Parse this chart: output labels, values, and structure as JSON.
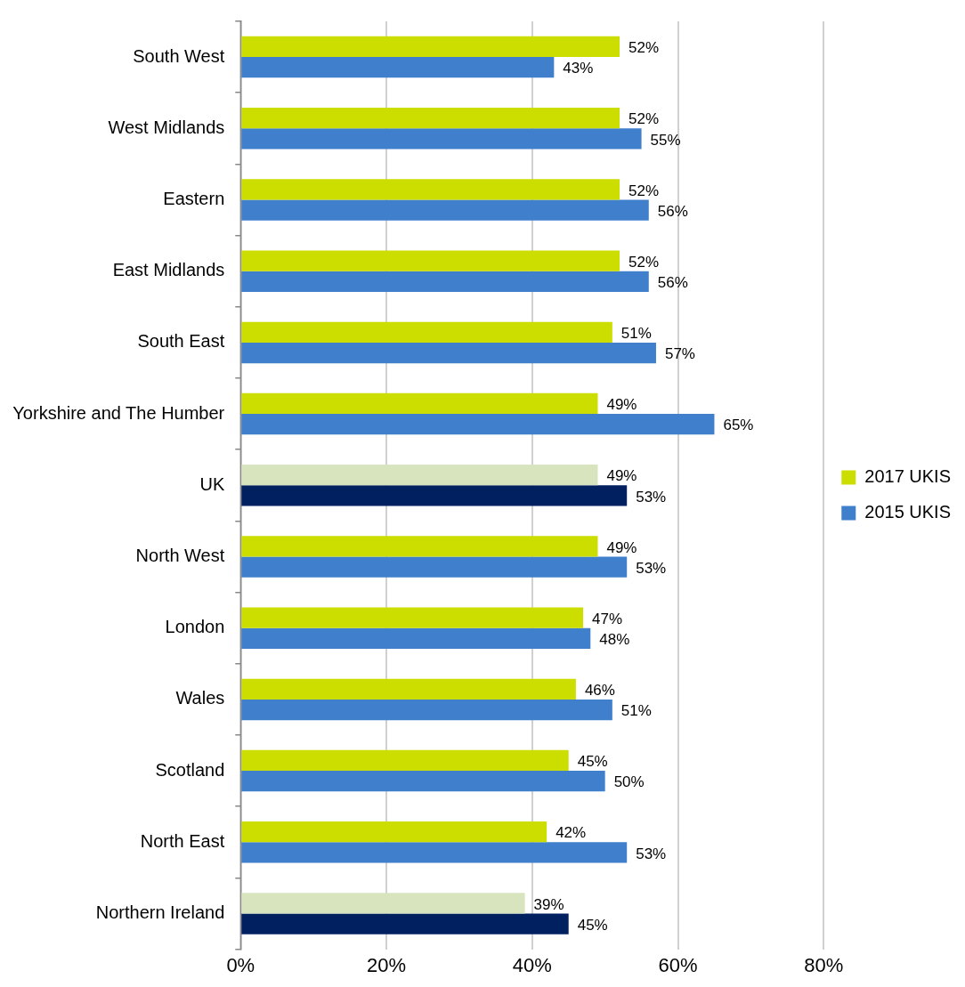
{
  "chart_data": {
    "type": "bar",
    "orientation": "horizontal",
    "categories": [
      "South West",
      "West Midlands",
      "Eastern",
      "East Midlands",
      "South East",
      "Yorkshire and The Humber",
      "UK",
      "North West",
      "London",
      "Wales",
      "Scotland",
      "North East",
      "Northern Ireland"
    ],
    "series": [
      {
        "name": "2017 UKIS",
        "color": "#ccdd00",
        "colors": [
          "#ccdd00",
          "#ccdd00",
          "#ccdd00",
          "#ccdd00",
          "#ccdd00",
          "#ccdd00",
          "#d7e4bd",
          "#ccdd00",
          "#ccdd00",
          "#ccdd00",
          "#ccdd00",
          "#ccdd00",
          "#d7e4bd"
        ],
        "values": [
          52,
          52,
          52,
          52,
          51,
          49,
          49,
          49,
          47,
          46,
          45,
          42,
          39
        ],
        "value_labels": [
          "52%",
          "52%",
          "52%",
          "52%",
          "51%",
          "49%",
          "49%",
          "49%",
          "47%",
          "46%",
          "45%",
          "42%",
          "39%"
        ]
      },
      {
        "name": "2015 UKIS",
        "color": "#3f7fcc",
        "colors": [
          "#3f7fcc",
          "#3f7fcc",
          "#3f7fcc",
          "#3f7fcc",
          "#3f7fcc",
          "#3f7fcc",
          "#002060",
          "#3f7fcc",
          "#3f7fcc",
          "#3f7fcc",
          "#3f7fcc",
          "#3f7fcc",
          "#002060"
        ],
        "values": [
          43,
          55,
          56,
          56,
          57,
          65,
          53,
          53,
          48,
          51,
          50,
          53,
          45
        ],
        "value_labels": [
          "43%",
          "55%",
          "56%",
          "56%",
          "57%",
          "65%",
          "53%",
          "53%",
          "48%",
          "51%",
          "50%",
          "53%",
          "45%"
        ]
      }
    ],
    "xlim": [
      0,
      80
    ],
    "xticks": [
      {
        "value": 0,
        "label": "0%"
      },
      {
        "value": 20,
        "label": "20%"
      },
      {
        "value": 40,
        "label": "40%"
      },
      {
        "value": 60,
        "label": "60%"
      },
      {
        "value": 80,
        "label": "80%"
      }
    ],
    "grid": "x",
    "legend": "right"
  }
}
